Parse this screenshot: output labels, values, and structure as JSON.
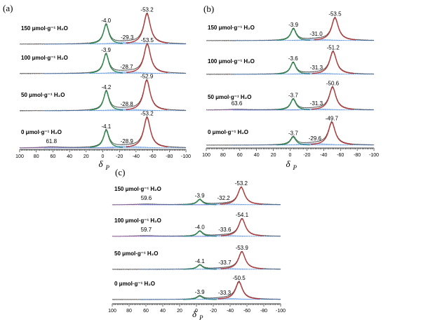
{
  "chart_data": [
    {
      "type": "line",
      "panel_label": "(a)",
      "xlabel": "δ",
      "xlabel_sub": "P",
      "xlim": [
        100,
        -100
      ],
      "xticks": [
        100,
        80,
        60,
        40,
        20,
        0,
        -20,
        -40,
        -60,
        -80,
        -100
      ],
      "series": [
        {
          "name": "150 μmol·g⁻¹ H₂O",
          "sample_label": "150 μmol·g⁻¹ H₂O",
          "peaks": [
            {
              "shift": -4.0,
              "label": "-4.0",
              "height": 1.0,
              "width": 4,
              "color": "#2e8b4e"
            },
            {
              "shift": -29.3,
              "label": "-29.3",
              "height": 0.1,
              "width": 20,
              "color": "#3b7fd9"
            },
            {
              "shift": -53.2,
              "label": "-53.2",
              "height": 1.55,
              "width": 5,
              "color": "#b23a3a"
            }
          ]
        },
        {
          "name": "100 μmol·g⁻¹ H₂O",
          "sample_label": "100 μmol·g⁻¹ H₂O",
          "peaks": [
            {
              "shift": -3.9,
              "label": "-3.9",
              "height": 1.0,
              "width": 4,
              "color": "#2e8b4e"
            },
            {
              "shift": -28.7,
              "label": "-28.7",
              "height": 0.1,
              "width": 20,
              "color": "#3b7fd9"
            },
            {
              "shift": -53.5,
              "label": "-53.5",
              "height": 1.5,
              "width": 5,
              "color": "#b23a3a"
            }
          ]
        },
        {
          "name": "50 μmol·g⁻¹ H₂O",
          "sample_label": "50 μmol·g⁻¹ H₂O",
          "peaks": [
            {
              "shift": -4.2,
              "label": "-4.2",
              "height": 1.0,
              "width": 4,
              "color": "#2e8b4e"
            },
            {
              "shift": -28.8,
              "label": "-28.8",
              "height": 0.1,
              "width": 20,
              "color": "#3b7fd9"
            },
            {
              "shift": -52.9,
              "label": "-52.9",
              "height": 1.55,
              "width": 5,
              "color": "#b23a3a"
            }
          ]
        },
        {
          "name": "0 μmol·g⁻¹ H₂O",
          "sample_label": "0 μmol·g⁻¹ H₂O",
          "peaks": [
            {
              "shift": 61.8,
              "label": "61.8",
              "height": 0.05,
              "width": 15,
              "color": "#9b59b6"
            },
            {
              "shift": -4.1,
              "label": "-4.1",
              "height": 0.9,
              "width": 4,
              "color": "#2e8b4e"
            },
            {
              "shift": -28.9,
              "label": "-28.9",
              "height": 0.1,
              "width": 20,
              "color": "#3b7fd9"
            },
            {
              "shift": -53.2,
              "label": "-53.2",
              "height": 1.55,
              "width": 5,
              "color": "#b23a3a"
            }
          ]
        }
      ]
    },
    {
      "type": "line",
      "panel_label": "(b)",
      "xlabel": "δ",
      "xlabel_sub": "P",
      "xlim": [
        100,
        -100
      ],
      "xticks": [
        100,
        80,
        60,
        40,
        20,
        0,
        -20,
        -40,
        -60,
        -80,
        -100
      ],
      "series": [
        {
          "name": "150 μmol·g⁻¹ H₂O",
          "sample_label": "150 μmol·g⁻¹ H₂O",
          "peaks": [
            {
              "shift": -3.9,
              "label": "-3.9",
              "height": 0.65,
              "width": 4,
              "color": "#2e8b4e"
            },
            {
              "shift": -31.0,
              "label": "-31.0",
              "height": 0.08,
              "width": 20,
              "color": "#3b7fd9"
            },
            {
              "shift": -53.5,
              "label": "-53.5",
              "height": 1.25,
              "width": 5,
              "color": "#b23a3a"
            }
          ]
        },
        {
          "name": "100 μmol·g⁻¹ H₂O",
          "sample_label": "100 μmol·g⁻¹ H₂O",
          "peaks": [
            {
              "shift": -3.6,
              "label": "-3.6",
              "height": 0.65,
              "width": 4,
              "color": "#2e8b4e"
            },
            {
              "shift": -31.3,
              "label": "-31.3",
              "height": 0.08,
              "width": 20,
              "color": "#3b7fd9"
            },
            {
              "shift": -51.2,
              "label": "-51.2",
              "height": 1.25,
              "width": 5,
              "color": "#b23a3a"
            }
          ]
        },
        {
          "name": "50 μmol·g⁻¹ H₂O",
          "sample_label": "50 μmol·g⁻¹ H₂O",
          "peaks": [
            {
              "shift": 63.6,
              "label": "63.6",
              "height": 0.04,
              "width": 15,
              "color": "#9b59b6"
            },
            {
              "shift": -3.7,
              "label": "-3.7",
              "height": 0.6,
              "width": 4,
              "color": "#2e8b4e"
            },
            {
              "shift": -31.3,
              "label": "-31.3",
              "height": 0.08,
              "width": 20,
              "color": "#3b7fd9"
            },
            {
              "shift": -50.6,
              "label": "-50.6",
              "height": 1.25,
              "width": 5,
              "color": "#b23a3a"
            }
          ]
        },
        {
          "name": "0 μmol·g⁻¹ H₂O",
          "sample_label": "0 μmol·g⁻¹ H₂O",
          "peaks": [
            {
              "shift": -3.7,
              "label": "-3.7",
              "height": 0.45,
              "width": 4,
              "color": "#2e8b4e"
            },
            {
              "shift": -29.6,
              "label": "-29.6",
              "height": 0.1,
              "width": 20,
              "color": "#3b7fd9"
            },
            {
              "shift": -49.7,
              "label": "-49.7",
              "height": 1.25,
              "width": 5,
              "color": "#b23a3a"
            }
          ]
        }
      ]
    },
    {
      "type": "line",
      "panel_label": "(c)",
      "xlabel": "δ",
      "xlabel_sub": "P",
      "xlim": [
        100,
        -100
      ],
      "xticks": [
        100,
        80,
        60,
        40,
        20,
        0,
        -20,
        -40,
        -60,
        -80,
        -100
      ],
      "series": [
        {
          "name": "150 μmol·g⁻¹ H₂O",
          "sample_label": "150 μmol·g⁻¹ H₂O",
          "peaks": [
            {
              "shift": 59.6,
              "label": "59.6",
              "height": 0.04,
              "width": 15,
              "color": "#9b59b6"
            },
            {
              "shift": -3.9,
              "label": "-3.9",
              "height": 0.3,
              "width": 4,
              "color": "#2e8b4e"
            },
            {
              "shift": -32.2,
              "label": "-32.2",
              "height": 0.06,
              "width": 20,
              "color": "#3b7fd9"
            },
            {
              "shift": -53.2,
              "label": "-53.2",
              "height": 1.0,
              "width": 5,
              "color": "#b23a3a"
            }
          ]
        },
        {
          "name": "100 μmol·g⁻¹ H₂O",
          "sample_label": "100 μmol·g⁻¹ H₂O",
          "peaks": [
            {
              "shift": 59.7,
              "label": "59.7",
              "height": 0.04,
              "width": 15,
              "color": "#9b59b6"
            },
            {
              "shift": -4.0,
              "label": "-4.0",
              "height": 0.3,
              "width": 4,
              "color": "#2e8b4e"
            },
            {
              "shift": -33.6,
              "label": "-33.6",
              "height": 0.06,
              "width": 20,
              "color": "#3b7fd9"
            },
            {
              "shift": -54.1,
              "label": "-54.1",
              "height": 1.0,
              "width": 5,
              "color": "#b23a3a"
            }
          ]
        },
        {
          "name": "50 μmol·g⁻¹ H₂O",
          "sample_label": "50 μmol·g⁻¹ H₂O",
          "peaks": [
            {
              "shift": -4.1,
              "label": "-4.1",
              "height": 0.25,
              "width": 4,
              "color": "#2e8b4e"
            },
            {
              "shift": -33.7,
              "label": "-33.7",
              "height": 0.06,
              "width": 20,
              "color": "#3b7fd9"
            },
            {
              "shift": -53.9,
              "label": "-53.9",
              "height": 1.0,
              "width": 5,
              "color": "#b23a3a"
            }
          ]
        },
        {
          "name": "0 μmol·g⁻¹ H₂O",
          "sample_label": "0 μmol·g⁻¹ H₂O",
          "peaks": [
            {
              "shift": -3.9,
              "label": "-3.9",
              "height": 0.2,
              "width": 4,
              "color": "#2e8b4e"
            },
            {
              "shift": -33.3,
              "label": "-33.3",
              "height": 0.08,
              "width": 20,
              "color": "#3b7fd9"
            },
            {
              "shift": -50.5,
              "label": "-50.5",
              "height": 1.0,
              "width": 5,
              "color": "#b23a3a"
            }
          ]
        }
      ]
    }
  ],
  "colors": {
    "baseline": "#444444",
    "fit": "#3b7fd9"
  }
}
